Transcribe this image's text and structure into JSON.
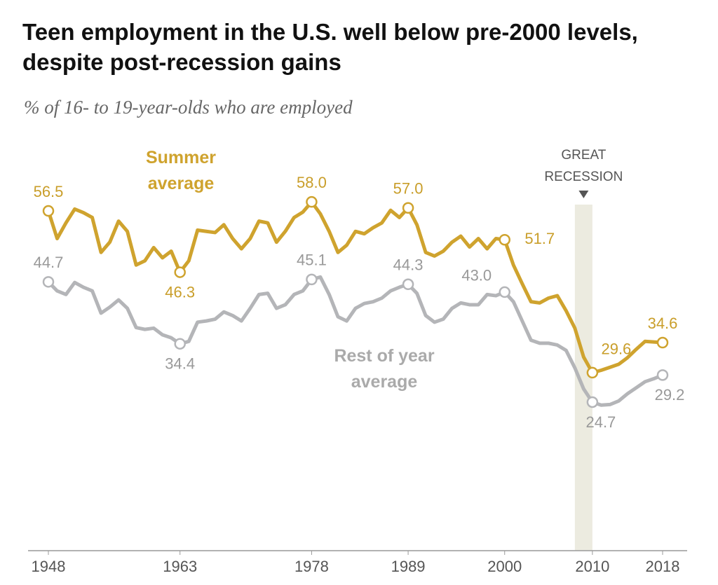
{
  "chart_data": {
    "type": "line",
    "title": "Teen employment in the U.S. well below pre-2000 levels, despite post-recession gains",
    "subtitle": "% of 16- to 19-year-olds who are employed",
    "x": [
      1948,
      1949,
      1950,
      1951,
      1952,
      1953,
      1954,
      1955,
      1956,
      1957,
      1958,
      1959,
      1960,
      1961,
      1962,
      1963,
      1964,
      1965,
      1966,
      1967,
      1968,
      1969,
      1970,
      1971,
      1972,
      1973,
      1974,
      1975,
      1976,
      1977,
      1978,
      1979,
      1980,
      1981,
      1982,
      1983,
      1984,
      1985,
      1986,
      1987,
      1988,
      1989,
      1990,
      1991,
      1992,
      1993,
      1994,
      1995,
      1996,
      1997,
      1998,
      1999,
      2000,
      2001,
      2002,
      2003,
      2004,
      2005,
      2006,
      2007,
      2008,
      2009,
      2010,
      2011,
      2012,
      2013,
      2014,
      2015,
      2016,
      2017,
      2018
    ],
    "xlim": [
      1948,
      2018
    ],
    "xticks": [
      1948,
      1963,
      1978,
      1989,
      2000,
      2010,
      2018
    ],
    "ylim": [
      0,
      60
    ],
    "series": [
      {
        "name": "Summer average",
        "color": "#cfa32e",
        "values": [
          56.5,
          51.9,
          54.5,
          56.8,
          56.2,
          55.4,
          49.6,
          51.3,
          54.8,
          53.1,
          47.5,
          48.2,
          50.4,
          48.7,
          49.8,
          46.3,
          48.2,
          53.3,
          53.1,
          52.9,
          54.2,
          51.9,
          50.2,
          51.9,
          54.8,
          54.5,
          51.3,
          53.1,
          55.4,
          56.3,
          58.0,
          56.0,
          53.1,
          49.6,
          50.8,
          53.1,
          52.7,
          53.7,
          54.5,
          56.6,
          55.4,
          57.0,
          54.2,
          49.6,
          49.0,
          49.8,
          51.3,
          52.3,
          50.5,
          51.9,
          50.2,
          51.9,
          51.7,
          47.5,
          44.4,
          41.4,
          41.2,
          42.0,
          42.4,
          39.9,
          37.0,
          32.2,
          29.6,
          30.0,
          30.5,
          31.0,
          32.1,
          33.5,
          34.8,
          34.7,
          34.6
        ],
        "value_labels": [
          "56.5",
          null,
          null,
          null,
          null,
          null,
          null,
          null,
          null,
          null,
          null,
          null,
          null,
          null,
          null,
          "46.3",
          null,
          null,
          null,
          null,
          null,
          null,
          null,
          null,
          null,
          null,
          null,
          null,
          null,
          null,
          "58.0",
          null,
          null,
          null,
          null,
          null,
          null,
          null,
          null,
          null,
          null,
          "57.0",
          null,
          null,
          null,
          null,
          null,
          null,
          null,
          null,
          null,
          null,
          "51.7",
          null,
          null,
          null,
          null,
          null,
          null,
          null,
          null,
          null,
          "29.6",
          null,
          null,
          null,
          null,
          null,
          null,
          null,
          "34.6"
        ]
      },
      {
        "name": "Rest of year average",
        "color": "#b4b5b8",
        "values": [
          44.7,
          43.2,
          42.6,
          44.6,
          43.8,
          43.2,
          39.5,
          40.5,
          41.7,
          40.3,
          37.1,
          36.8,
          37.0,
          35.9,
          35.4,
          34.4,
          34.8,
          38.0,
          38.2,
          38.5,
          39.7,
          39.1,
          38.2,
          40.3,
          42.6,
          42.8,
          40.3,
          40.9,
          42.6,
          43.2,
          45.1,
          45.5,
          42.6,
          38.9,
          38.2,
          40.3,
          41.1,
          41.4,
          42.0,
          43.2,
          43.8,
          44.3,
          42.8,
          39.1,
          38.0,
          38.5,
          40.3,
          41.2,
          40.9,
          40.9,
          42.6,
          42.4,
          43.0,
          41.4,
          38.2,
          35.0,
          34.5,
          34.5,
          34.2,
          33.3,
          30.4,
          26.9,
          24.7,
          24.2,
          24.3,
          24.9,
          26.1,
          27.1,
          28.1,
          28.6,
          29.2
        ],
        "value_labels": [
          "44.7",
          null,
          null,
          null,
          null,
          null,
          null,
          null,
          null,
          null,
          null,
          null,
          null,
          null,
          null,
          "34.4",
          null,
          null,
          null,
          null,
          null,
          null,
          null,
          null,
          null,
          null,
          null,
          null,
          null,
          null,
          "45.1",
          null,
          null,
          null,
          null,
          null,
          null,
          null,
          null,
          null,
          null,
          "44.3",
          null,
          null,
          null,
          null,
          null,
          null,
          null,
          null,
          null,
          null,
          "43.0",
          null,
          null,
          null,
          null,
          null,
          null,
          null,
          null,
          null,
          "24.7",
          null,
          null,
          null,
          null,
          null,
          null,
          null,
          "29.2"
        ]
      }
    ],
    "recession": {
      "label": "GREAT RECESSION",
      "start": 2008,
      "end": 2010
    }
  }
}
